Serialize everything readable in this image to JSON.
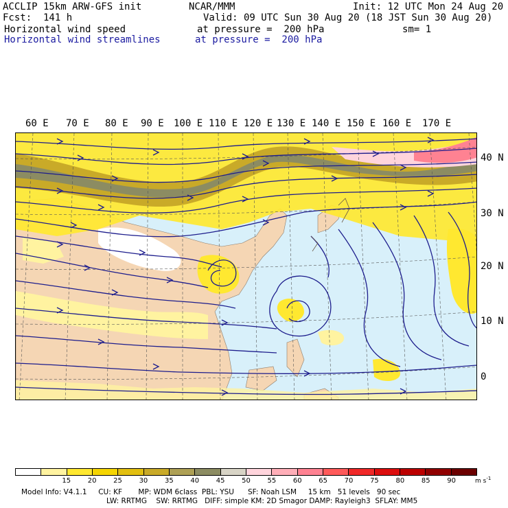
{
  "header": {
    "model": "ACCLIP 15km ARW-GFS init",
    "center": "NCAR/MMM",
    "init": "Init: 12 UTC Mon 24 Aug 20",
    "fcst": "Fcst:  141 h",
    "valid": "Valid: 09 UTC Sun 30 Aug 20 (18 JST Sun 30 Aug 20)",
    "field1": "Horizontal wind speed",
    "field1_level": "at pressure =  200 hPa",
    "smooth": "sm= 1",
    "field2": "Horizontal wind streamlines",
    "field2_level": "at pressure =  200 hPa"
  },
  "map": {
    "lon_labels": [
      "60 E",
      "70 E",
      "80 E",
      "90 E",
      "100 E",
      "110 E",
      "120 E",
      "130 E",
      "140 E",
      "150 E",
      "160 E",
      "170 E"
    ],
    "lat_labels": [
      "40 N",
      "30 N",
      "20 N",
      "10 N",
      "0"
    ],
    "colors": {
      "ocean_calm": "#d8f0fa",
      "land": "#f5d6b4",
      "streamline": "#1c1c8c",
      "jet_band": "#a8a050"
    }
  },
  "colorbar": {
    "labels": [
      "15",
      "20",
      "25",
      "30",
      "35",
      "40",
      "45",
      "50",
      "55",
      "60",
      "65",
      "70",
      "75",
      "80",
      "85",
      "90"
    ],
    "unit": "m s",
    "unit_exp": "-1",
    "colors": [
      "#ffffff",
      "#fff3a0",
      "#ffe830",
      "#f5d500",
      "#e2bf10",
      "#c9aa28",
      "#aea055",
      "#8c8c62",
      "#d8d4c6",
      "#ffd4dc",
      "#ffaeb8",
      "#ff8292",
      "#ff5a5a",
      "#f02828",
      "#dc0e0e",
      "#bc0000",
      "#900000",
      "#6c0000"
    ]
  },
  "model_info": {
    "line1": "Model Info: V4.1.1     CU: KF       MP: WDM 6class  PBL: YSU      SF: Noah LSM     15 km   51 levels   90 sec",
    "line2": "LW: RRTMG    SW: RRTMG   DIFF: simple KM: 2D Smagor DAMP: Rayleigh3  SFLAY: MM5"
  }
}
